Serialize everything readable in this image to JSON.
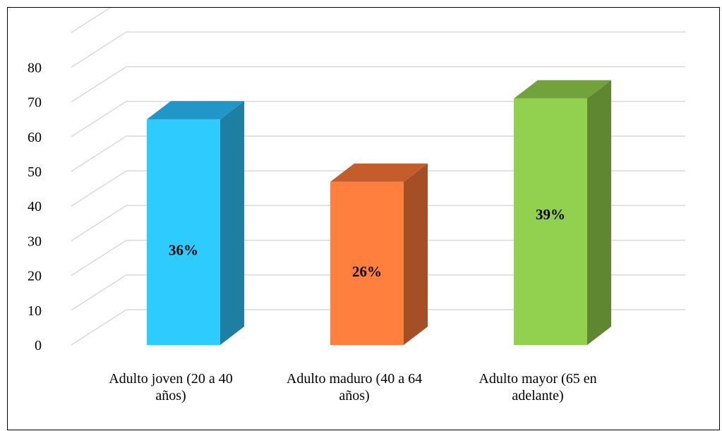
{
  "chart_data": {
    "type": "bar",
    "style": "3d",
    "categories": [
      [
        "Adulto joven (20 a 40",
        "años)"
      ],
      [
        "Adulto maduro (40 a 64",
        "años)"
      ],
      [
        "Adulto mayor (65 en",
        "adelante)"
      ]
    ],
    "values": [
      65,
      47,
      71
    ],
    "data_labels": [
      "36%",
      "26%",
      "39%"
    ],
    "colors": [
      {
        "front": "#2ECBFF",
        "side": "#1E7FA3",
        "top": "#2196C8"
      },
      {
        "front": "#FF7F3F",
        "side": "#A54F26",
        "top": "#C45C2C"
      },
      {
        "front": "#92D050",
        "side": "#5F8631",
        "top": "#72A23A"
      }
    ],
    "ylim": [
      0,
      100
    ],
    "yticks": [
      0,
      10,
      20,
      30,
      40,
      50,
      60,
      70,
      80
    ],
    "grid": true,
    "grid_color": "#D9D9D9",
    "title": "",
    "xlabel": "",
    "ylabel": ""
  }
}
